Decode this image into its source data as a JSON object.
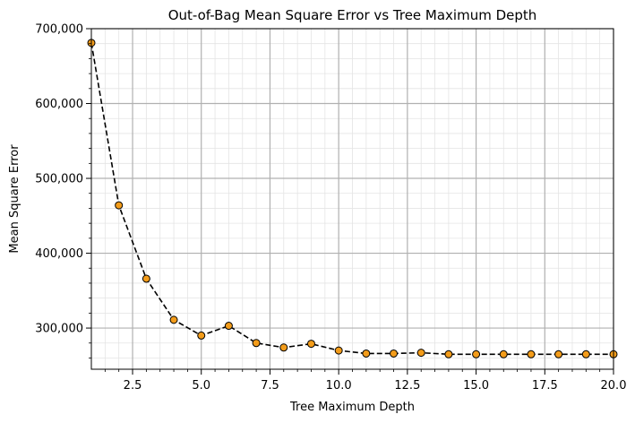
{
  "chart_data": {
    "type": "line",
    "title": "Out-of-Bag Mean Square Error vs Tree Maximum Depth",
    "xlabel": "Tree Maximum Depth",
    "ylabel": "Mean Square Error",
    "xlim": [
      1,
      20
    ],
    "ylim": [
      245000,
      700000
    ],
    "x_ticks": [
      2.5,
      5.0,
      7.5,
      10.0,
      12.5,
      15.0,
      17.5,
      20.0
    ],
    "x_tick_labels": [
      "2.5",
      "5.0",
      "7.5",
      "10.0",
      "12.5",
      "15.0",
      "17.5",
      "20.0"
    ],
    "y_ticks": [
      300000,
      400000,
      500000,
      600000,
      700000
    ],
    "y_tick_labels": [
      "300,000",
      "400,000",
      "500,000",
      "600,000",
      "700,000"
    ],
    "grid": "major and minor",
    "series": [
      {
        "x": [
          1,
          2,
          3,
          4,
          5,
          6,
          7,
          8,
          9,
          10,
          11,
          12,
          13,
          14,
          15,
          16,
          17,
          18,
          19,
          20
        ],
        "values": [
          681000,
          464000,
          366000,
          311000,
          290000,
          303000,
          280000,
          274000,
          279000,
          270000,
          266000,
          266000,
          267000,
          265000,
          265000,
          265000,
          265000,
          265000,
          265000,
          265000
        ],
        "line_color": "#000000",
        "line_style": "dashed",
        "marker_color": "#f39c1a",
        "marker_edge_color": "#000000"
      }
    ]
  }
}
